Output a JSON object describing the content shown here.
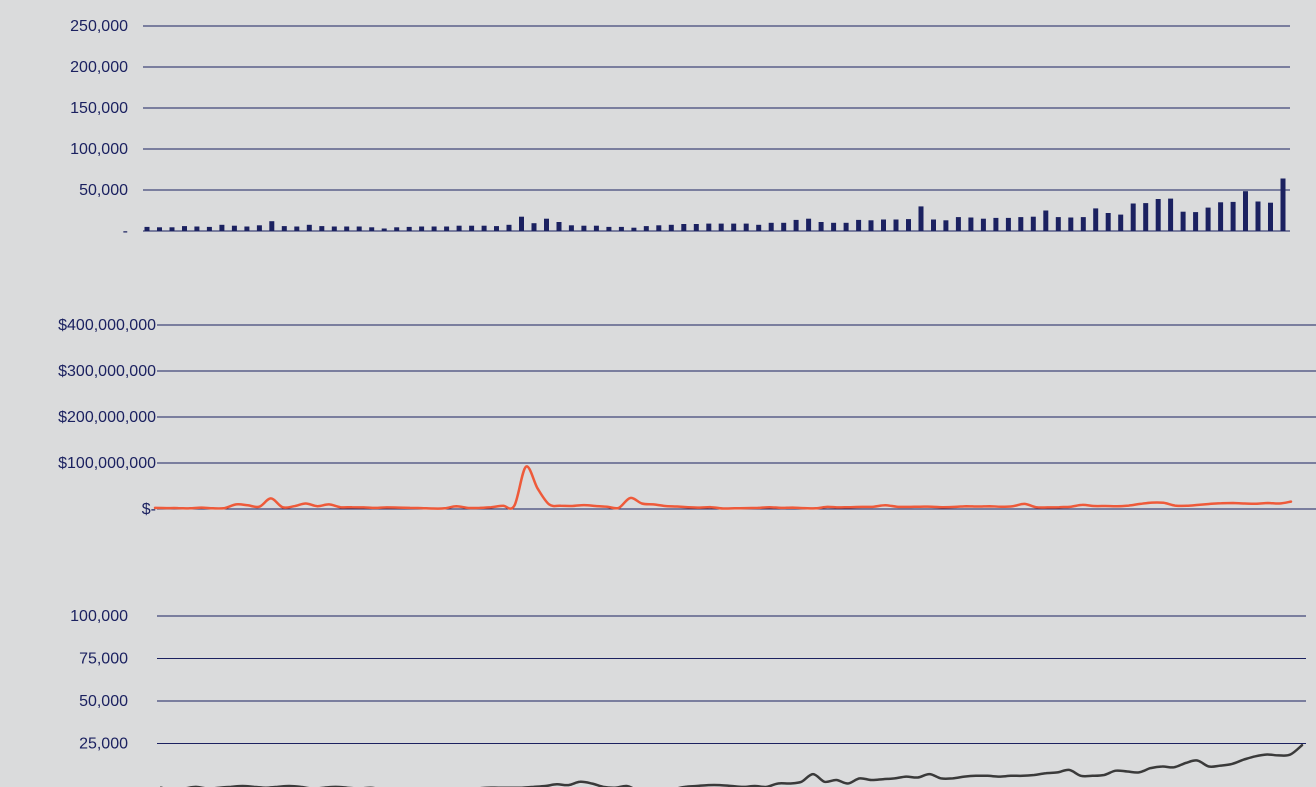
{
  "colors": {
    "background": "#dadbdc",
    "gridline": "#1b2160",
    "bars": "#1b2160",
    "line_orange": "#ee5a3a",
    "line_dark": "#3a3a3a",
    "tick_text": "#1b2160"
  },
  "chart_data": [
    {
      "type": "bar",
      "title": "",
      "xlabel": "",
      "ylabel": "",
      "ylim": [
        0,
        250000
      ],
      "grid": true,
      "yticks": [
        0,
        50000,
        100000,
        150000,
        200000,
        250000
      ],
      "ytick_labels": [
        "-",
        "50,000",
        "100,000",
        "150,000",
        "200,000",
        "250,000"
      ],
      "series": [
        {
          "values": [
            5000,
            4500,
            4500,
            6000,
            5500,
            5000,
            7500,
            6500,
            5500,
            7000,
            12000,
            6000,
            5500,
            7500,
            6000,
            5500,
            5500,
            5500,
            4500,
            3000,
            4500,
            5000,
            5500,
            5500,
            5500,
            6500,
            6500,
            6500,
            6000,
            7500,
            17500,
            9500,
            15000,
            11000,
            7000,
            6500,
            6500,
            5000,
            5000,
            4000,
            6000,
            7000,
            7500,
            8500,
            8500,
            9000,
            9000,
            9000,
            9000,
            7500,
            10000,
            10000,
            13500,
            15000,
            11000,
            10000,
            10000,
            13500,
            13000,
            14000,
            14000,
            14500,
            30000,
            14000,
            13000,
            17000,
            16500,
            15000,
            16000,
            16000,
            17000,
            17500,
            25000,
            17000,
            16500,
            17000,
            27500,
            22000,
            20000,
            33500,
            34000,
            39000,
            39500,
            23500,
            23000,
            28500,
            35000,
            35500,
            48500,
            36000,
            34500,
            64000
          ]
        }
      ]
    },
    {
      "type": "line",
      "title": "",
      "xlabel": "",
      "ylabel": "",
      "ylim": [
        0,
        400000000
      ],
      "grid": true,
      "yticks": [
        0,
        100000000,
        200000000,
        300000000,
        400000000
      ],
      "ytick_labels": [
        "$-",
        "$100,000,000",
        "$200,000,000",
        "$300,000,000",
        "$400,000,000"
      ],
      "series": [
        {
          "values": [
            2500000,
            2000000,
            2000000,
            1500000,
            3000000,
            1500000,
            2000000,
            10000000,
            8000000,
            5000000,
            23000000,
            4000000,
            6000000,
            12000000,
            6000000,
            10000000,
            4000000,
            4000000,
            3500000,
            2500000,
            3500000,
            3000000,
            2500000,
            2000000,
            1000000,
            1500000,
            6000000,
            2500000,
            2500000,
            4000000,
            7000000,
            7000000,
            92000000,
            45000000,
            10000000,
            7000000,
            6500000,
            8500000,
            6500000,
            5000000,
            2500000,
            24000000,
            12000000,
            10000000,
            6500000,
            5500000,
            4000000,
            3000000,
            4000000,
            1000000,
            1500000,
            2000000,
            2500000,
            4000000,
            2500000,
            3000000,
            2000000,
            1500000,
            4500000,
            3500000,
            4000000,
            4500000,
            5000000,
            8000000,
            5000000,
            4500000,
            5000000,
            5000000,
            4000000,
            4500000,
            6000000,
            5500000,
            6000000,
            5000000,
            6000000,
            11000000,
            4000000,
            3500000,
            4000000,
            5000000,
            9000000,
            6500000,
            6500000,
            6000000,
            7500000,
            11000000,
            14000000,
            13500000,
            7500000,
            7000000,
            9000000,
            11000000,
            12500000,
            13000000,
            12000000,
            11500000,
            13000000,
            12000000,
            16000000
          ]
        }
      ]
    },
    {
      "type": "line",
      "title": "",
      "xlabel": "",
      "ylabel": "",
      "ylim": [
        0,
        100000
      ],
      "grid": true,
      "yticks": [
        25000,
        50000,
        75000,
        100000
      ],
      "ytick_labels": [
        "25,000",
        "50,000",
        "75,000",
        "100,000"
      ],
      "series": [
        {
          "values": [
            -1000,
            -2500,
            -1500,
            -500,
            -1500,
            -1000,
            -500,
            0,
            -500,
            -1000,
            -500,
            0,
            -500,
            -1500,
            -1000,
            -500,
            -1000,
            -1500,
            -1000,
            -2000,
            -2000,
            -2500,
            -4000,
            -2000,
            -2000,
            -1500,
            -1500,
            -1500,
            -1000,
            -1000,
            -1000,
            -1000,
            -500,
            0,
            1000,
            500,
            2500,
            1500,
            -500,
            -1000,
            0,
            -2500,
            -2000,
            -4000,
            -2000,
            -500,
            0,
            500,
            500,
            0,
            -500,
            0,
            -500,
            1500,
            1500,
            2500,
            7000,
            2500,
            3500,
            1500,
            4500,
            3500,
            4000,
            4500,
            5500,
            5000,
            7000,
            4500,
            4500,
            5500,
            6000,
            6000,
            5500,
            6000,
            6000,
            6500,
            7500,
            8000,
            9500,
            6000,
            6000,
            6500,
            9000,
            8500,
            8000,
            10500,
            11500,
            11000,
            13500,
            15000,
            11500,
            12000,
            13000,
            15500,
            17500,
            18500,
            18000,
            18500,
            24000
          ]
        }
      ]
    }
  ]
}
